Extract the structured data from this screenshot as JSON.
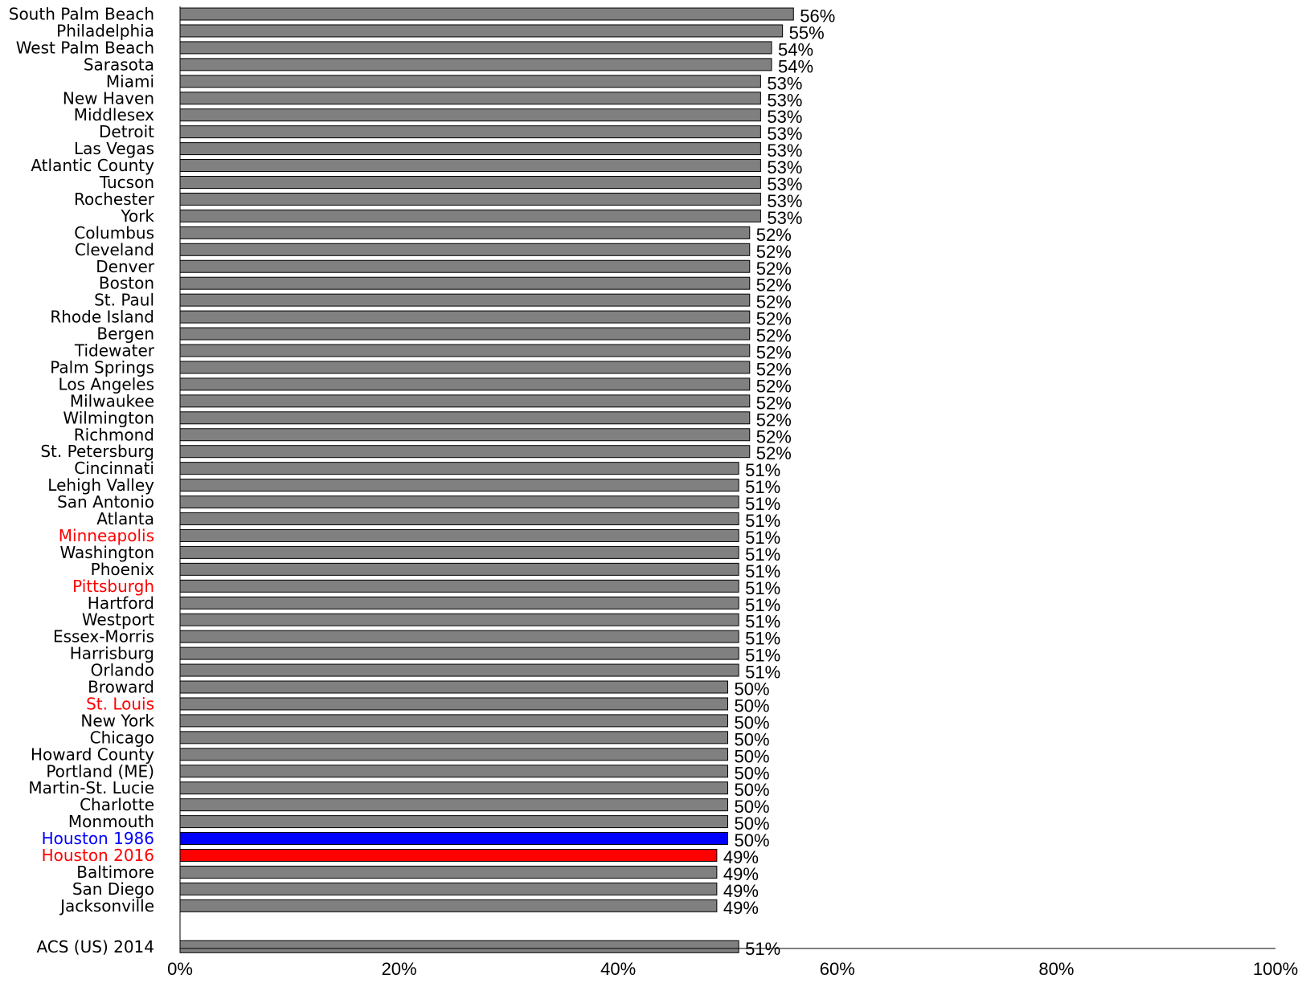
{
  "chart_data": {
    "type": "bar",
    "orientation": "horizontal",
    "title": "",
    "xlabel": "",
    "ylabel": "",
    "xlim": [
      0,
      100
    ],
    "x_ticks": [
      "0%",
      "20%",
      "40%",
      "60%",
      "80%",
      "100%"
    ],
    "grid": false,
    "legend": "none",
    "colors": {
      "default": "#808080",
      "highlight_red": "#ff0000",
      "highlight_blue": "#0000ff",
      "label_default": "#000000"
    },
    "bars": [
      {
        "category": "South Palm Beach",
        "value": 56,
        "label": "56%",
        "color": "default"
      },
      {
        "category": "Philadelphia",
        "value": 55,
        "label": "55%",
        "color": "default"
      },
      {
        "category": "West Palm Beach",
        "value": 54,
        "label": "54%",
        "color": "default"
      },
      {
        "category": "Sarasota",
        "value": 54,
        "label": "54%",
        "color": "default"
      },
      {
        "category": "Miami",
        "value": 53,
        "label": "53%",
        "color": "default"
      },
      {
        "category": "New Haven",
        "value": 53,
        "label": "53%",
        "color": "default"
      },
      {
        "category": "Middlesex",
        "value": 53,
        "label": "53%",
        "color": "default"
      },
      {
        "category": "Detroit",
        "value": 53,
        "label": "53%",
        "color": "default"
      },
      {
        "category": "Las Vegas",
        "value": 53,
        "label": "53%",
        "color": "default"
      },
      {
        "category": "Atlantic County",
        "value": 53,
        "label": "53%",
        "color": "default"
      },
      {
        "category": "Tucson",
        "value": 53,
        "label": "53%",
        "color": "default"
      },
      {
        "category": "Rochester",
        "value": 53,
        "label": "53%",
        "color": "default"
      },
      {
        "category": "York",
        "value": 53,
        "label": "53%",
        "color": "default"
      },
      {
        "category": "Columbus",
        "value": 52,
        "label": "52%",
        "color": "default"
      },
      {
        "category": "Cleveland",
        "value": 52,
        "label": "52%",
        "color": "default"
      },
      {
        "category": "Denver",
        "value": 52,
        "label": "52%",
        "color": "default"
      },
      {
        "category": "Boston",
        "value": 52,
        "label": "52%",
        "color": "default"
      },
      {
        "category": "St. Paul",
        "value": 52,
        "label": "52%",
        "color": "default"
      },
      {
        "category": "Rhode Island",
        "value": 52,
        "label": "52%",
        "color": "default"
      },
      {
        "category": "Bergen",
        "value": 52,
        "label": "52%",
        "color": "default"
      },
      {
        "category": "Tidewater",
        "value": 52,
        "label": "52%",
        "color": "default"
      },
      {
        "category": "Palm Springs",
        "value": 52,
        "label": "52%",
        "color": "default"
      },
      {
        "category": "Los Angeles",
        "value": 52,
        "label": "52%",
        "color": "default"
      },
      {
        "category": "Milwaukee",
        "value": 52,
        "label": "52%",
        "color": "default"
      },
      {
        "category": "Wilmington",
        "value": 52,
        "label": "52%",
        "color": "default"
      },
      {
        "category": "Richmond",
        "value": 52,
        "label": "52%",
        "color": "default"
      },
      {
        "category": "St. Petersburg",
        "value": 52,
        "label": "52%",
        "color": "default"
      },
      {
        "category": "Cincinnati",
        "value": 51,
        "label": "51%",
        "color": "default"
      },
      {
        "category": "Lehigh Valley",
        "value": 51,
        "label": "51%",
        "color": "default"
      },
      {
        "category": "San Antonio",
        "value": 51,
        "label": "51%",
        "color": "default"
      },
      {
        "category": "Atlanta",
        "value": 51,
        "label": "51%",
        "color": "default"
      },
      {
        "category": "Minneapolis",
        "value": 51,
        "label": "51%",
        "color": "default",
        "label_color": "highlight_red"
      },
      {
        "category": "Washington",
        "value": 51,
        "label": "51%",
        "color": "default"
      },
      {
        "category": "Phoenix",
        "value": 51,
        "label": "51%",
        "color": "default"
      },
      {
        "category": "Pittsburgh",
        "value": 51,
        "label": "51%",
        "color": "default",
        "label_color": "highlight_red"
      },
      {
        "category": "Hartford",
        "value": 51,
        "label": "51%",
        "color": "default"
      },
      {
        "category": "Westport",
        "value": 51,
        "label": "51%",
        "color": "default"
      },
      {
        "category": "Essex-Morris",
        "value": 51,
        "label": "51%",
        "color": "default"
      },
      {
        "category": "Harrisburg",
        "value": 51,
        "label": "51%",
        "color": "default"
      },
      {
        "category": "Orlando",
        "value": 51,
        "label": "51%",
        "color": "default"
      },
      {
        "category": "Broward",
        "value": 50,
        "label": "50%",
        "color": "default"
      },
      {
        "category": "St. Louis",
        "value": 50,
        "label": "50%",
        "color": "default",
        "label_color": "highlight_red"
      },
      {
        "category": "New York",
        "value": 50,
        "label": "50%",
        "color": "default"
      },
      {
        "category": "Chicago",
        "value": 50,
        "label": "50%",
        "color": "default"
      },
      {
        "category": "Howard County",
        "value": 50,
        "label": "50%",
        "color": "default"
      },
      {
        "category": "Portland (ME)",
        "value": 50,
        "label": "50%",
        "color": "default"
      },
      {
        "category": "Martin-St. Lucie",
        "value": 50,
        "label": "50%",
        "color": "default"
      },
      {
        "category": "Charlotte",
        "value": 50,
        "label": "50%",
        "color": "default"
      },
      {
        "category": "Monmouth",
        "value": 50,
        "label": "50%",
        "color": "default"
      },
      {
        "category": "Houston 1986",
        "value": 50,
        "label": "50%",
        "color": "highlight_blue",
        "label_color": "highlight_blue"
      },
      {
        "category": "Houston 2016",
        "value": 49,
        "label": "49%",
        "color": "highlight_red",
        "label_color": "highlight_red"
      },
      {
        "category": "Baltimore",
        "value": 49,
        "label": "49%",
        "color": "default"
      },
      {
        "category": "San Diego",
        "value": 49,
        "label": "49%",
        "color": "default"
      },
      {
        "category": "Jacksonville",
        "value": 49,
        "label": "49%",
        "color": "default"
      },
      {
        "category": "ACS (US) 2014",
        "value": 51,
        "label": "51%",
        "color": "default",
        "separated": true
      }
    ]
  }
}
